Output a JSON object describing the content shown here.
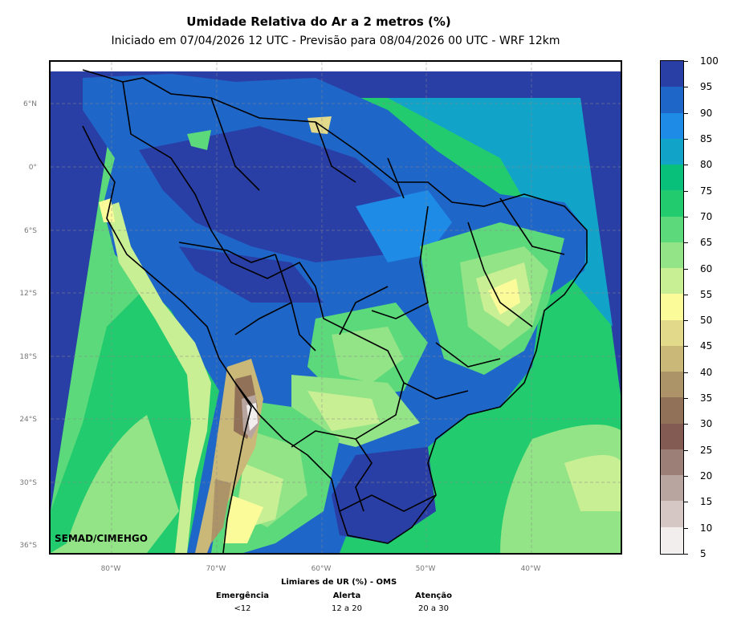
{
  "title": "Umidade Relativa do Ar a 2 metros (%)",
  "subtitle": "Iniciado em 07/04/2026 12 UTC - Previsão para 08/04/2026 00 UTC - WRF 12km",
  "map": {
    "lat_labels": [
      "6°N",
      "0°",
      "6°S",
      "12°S",
      "18°S",
      "24°S",
      "30°S",
      "36°S"
    ],
    "lon_labels": [
      "80°W",
      "70°W",
      "60°W",
      "50°W",
      "40°W"
    ],
    "credit": "SEMAD/CIMEHGO"
  },
  "colorbar": {
    "ticks": [
      "100",
      "95",
      "90",
      "85",
      "80",
      "75",
      "70",
      "65",
      "60",
      "55",
      "50",
      "45",
      "40",
      "35",
      "30",
      "25",
      "20",
      "15",
      "10",
      "5"
    ],
    "colors": [
      "#2a3fa6",
      "#1f66c9",
      "#1e8ce6",
      "#11a4c8",
      "#09c07a",
      "#22cc6e",
      "#5cd97a",
      "#92e487",
      "#c9ef94",
      "#fbfb9a",
      "#e3d98a",
      "#c9b877",
      "#ad9368",
      "#917258",
      "#845b52",
      "#9c7f77",
      "#b8a59f",
      "#d4c7c4",
      "#f2eeed"
    ]
  },
  "thresholds": {
    "title": "Limiares de UR (%) - OMS",
    "items": [
      {
        "name": "Emergência",
        "value": "<12"
      },
      {
        "name": "Alerta",
        "value": "12 a 20"
      },
      {
        "name": "Atenção",
        "value": "20 a 30"
      }
    ]
  }
}
